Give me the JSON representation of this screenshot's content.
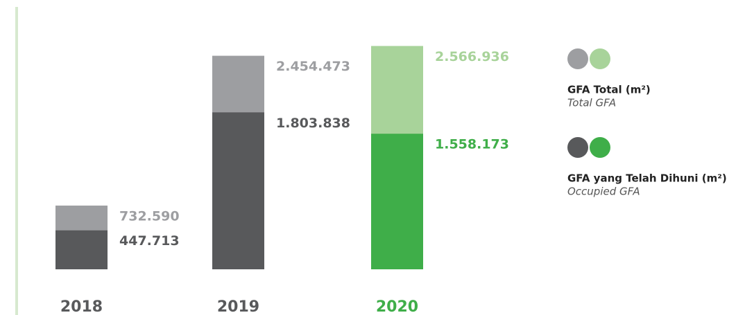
{
  "chart_data": {
    "type": "bar",
    "categories": [
      "2018",
      "2019",
      "2020"
    ],
    "series": [
      {
        "name": "GFA Total (m²)",
        "subtitle": "Total GFA",
        "colors": [
          "#9d9ea1",
          "#9d9ea1",
          "#a8d39a"
        ],
        "values": [
          732590,
          2454473,
          2566936
        ],
        "value_labels": [
          "732.590",
          "2.454.473",
          "2.566.936"
        ]
      },
      {
        "name": "GFA yang Telah Dihuni (m²)",
        "subtitle": "Occupied GFA",
        "colors": [
          "#58595b",
          "#58595b",
          "#3fae49"
        ],
        "values": [
          447713,
          1803838,
          1558173
        ],
        "value_labels": [
          "447.713",
          "1.803.838",
          "1.558.173"
        ]
      }
    ],
    "ylim": [
      0,
      3000000
    ]
  }
}
